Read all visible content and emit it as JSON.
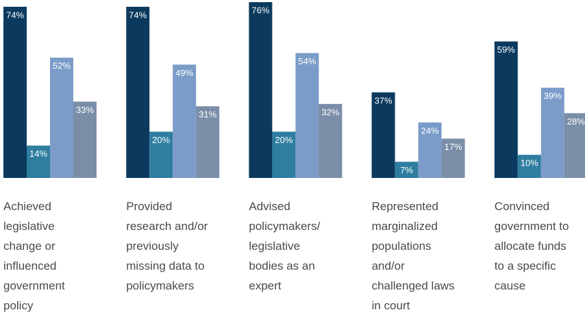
{
  "chart_data": {
    "type": "bar",
    "categories": [
      "Achieved legislative change or influenced government policy",
      "Provided research and/or previously missing data to policymakers",
      "Advised policymakers/ legislative bodies as an expert",
      "Represented marginalized populations and/or challenged laws in court",
      "Convinced government to allocate funds to a specific cause"
    ],
    "series": [
      {
        "color": "#0b3a5e",
        "values": [
          74,
          74,
          76,
          37,
          59
        ],
        "value_labels": [
          "74%",
          "74%",
          "76%",
          "37%",
          "59%"
        ]
      },
      {
        "color": "#2f7ea0",
        "values": [
          14,
          20,
          20,
          7,
          10
        ],
        "value_labels": [
          "14%",
          "20%",
          "20%",
          "7%",
          "10%"
        ]
      },
      {
        "color": "#7b9cc9",
        "values": [
          52,
          49,
          54,
          24,
          39
        ],
        "value_labels": [
          "52%",
          "49%",
          "54%",
          "24%",
          "39%"
        ]
      },
      {
        "color": "#7a8ea8",
        "values": [
          33,
          31,
          32,
          17,
          28
        ],
        "value_labels": [
          "33%",
          "31%",
          "32%",
          "17%",
          "28%"
        ]
      }
    ]
  }
}
